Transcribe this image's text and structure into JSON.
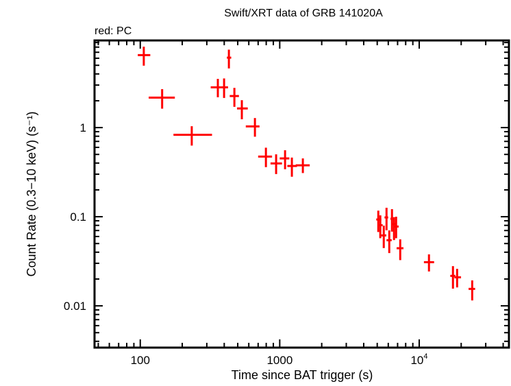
{
  "chart_data": {
    "type": "scatter",
    "title": "Swift/XRT data of GRB 141020A",
    "subtitle": "red: PC",
    "xlabel": "Time since BAT trigger (s)",
    "ylabel": "Count Rate (0.3−10 keV) (s⁻¹)",
    "xscale": "log",
    "yscale": "log",
    "xlim": [
      47,
      44000
    ],
    "ylim": [
      0.0034,
      9.5
    ],
    "grid": false,
    "x_ticks": [
      {
        "value": 100,
        "label": "100"
      },
      {
        "value": 1000,
        "label": "1000"
      },
      {
        "value": 10000,
        "label": "10",
        "sup": "4"
      }
    ],
    "y_ticks": [
      {
        "value": 1,
        "label": "1"
      },
      {
        "value": 0.1,
        "label": "0.1"
      },
      {
        "value": 0.01,
        "label": "0.01"
      }
    ],
    "series": [
      {
        "color": "#ff0000",
        "points": [
          {
            "x": 106,
            "xlo": 96,
            "xhi": 118,
            "y": 6.5,
            "ylo": 4.95,
            "yhi": 8.09
          },
          {
            "x": 143.5,
            "xlo": 115,
            "xhi": 177,
            "y": 2.17,
            "ylo": 1.63,
            "yhi": 2.7
          },
          {
            "x": 234,
            "xlo": 173,
            "xhi": 327,
            "y": 0.83,
            "ylo": 0.628,
            "yhi": 1.036
          },
          {
            "x": 360,
            "xlo": 320,
            "xhi": 380,
            "y": 2.83,
            "ylo": 2.19,
            "yhi": 3.52
          },
          {
            "x": 399,
            "xlo": 380,
            "xhi": 426,
            "y": 2.83,
            "ylo": 2.15,
            "yhi": 3.56
          },
          {
            "x": 432,
            "xlo": 418,
            "xhi": 449,
            "y": 6.09,
            "ylo": 4.61,
            "yhi": 7.49
          },
          {
            "x": 473,
            "xlo": 438,
            "xhi": 510,
            "y": 2.26,
            "ylo": 1.71,
            "yhi": 2.79
          },
          {
            "x": 535,
            "xlo": 494,
            "xhi": 590,
            "y": 1.64,
            "ylo": 1.24,
            "yhi": 2.03
          },
          {
            "x": 664,
            "xlo": 571,
            "xhi": 716,
            "y": 1.03,
            "ylo": 0.79,
            "yhi": 1.28
          },
          {
            "x": 796,
            "xlo": 700,
            "xhi": 881,
            "y": 0.473,
            "ylo": 0.36,
            "yhi": 0.595
          },
          {
            "x": 942,
            "xlo": 859,
            "xhi": 1038,
            "y": 0.396,
            "ylo": 0.301,
            "yhi": 0.501
          },
          {
            "x": 1092,
            "xlo": 1000,
            "xhi": 1172,
            "y": 0.451,
            "ylo": 0.341,
            "yhi": 0.557
          },
          {
            "x": 1222,
            "xlo": 1133,
            "xhi": 1330,
            "y": 0.371,
            "ylo": 0.281,
            "yhi": 0.461
          },
          {
            "x": 1465,
            "xlo": 1303,
            "xhi": 1641,
            "y": 0.377,
            "ylo": 0.309,
            "yhi": 0.451
          },
          {
            "x": 5090,
            "xlo": 4920,
            "xhi": 5350,
            "y": 0.0931,
            "ylo": 0.0674,
            "yhi": 0.117
          },
          {
            "x": 5260,
            "xlo": 5150,
            "xhi": 5470,
            "y": 0.0804,
            "ylo": 0.0574,
            "yhi": 0.1036
          },
          {
            "x": 5570,
            "xlo": 5310,
            "xhi": 5810,
            "y": 0.0617,
            "ylo": 0.0445,
            "yhi": 0.0794
          },
          {
            "x": 5830,
            "xlo": 5640,
            "xhi": 5990,
            "y": 0.0982,
            "ylo": 0.0705,
            "yhi": 0.126
          },
          {
            "x": 6100,
            "xlo": 5830,
            "xhi": 6350,
            "y": 0.0545,
            "ylo": 0.0391,
            "yhi": 0.0702
          },
          {
            "x": 6380,
            "xlo": 6220,
            "xhi": 6560,
            "y": 0.0948,
            "ylo": 0.068,
            "yhi": 0.1216
          },
          {
            "x": 6600,
            "xlo": 6410,
            "xhi": 6750,
            "y": 0.0828,
            "ylo": 0.0547,
            "yhi": 0.0989
          },
          {
            "x": 6830,
            "xlo": 6650,
            "xhi": 7130,
            "y": 0.0776,
            "ylo": 0.0574,
            "yhi": 0.1
          },
          {
            "x": 7310,
            "xlo": 6890,
            "xhi": 7710,
            "y": 0.0443,
            "ylo": 0.0326,
            "yhi": 0.0557
          },
          {
            "x": 11750,
            "xlo": 10810,
            "xhi": 12790,
            "y": 0.0309,
            "ylo": 0.0243,
            "yhi": 0.0378
          },
          {
            "x": 17460,
            "xlo": 16700,
            "xhi": 18160,
            "y": 0.0217,
            "ylo": 0.0156,
            "yhi": 0.0279
          },
          {
            "x": 18700,
            "xlo": 17870,
            "xhi": 19950,
            "y": 0.0209,
            "ylo": 0.0161,
            "yhi": 0.026
          },
          {
            "x": 23990,
            "xlo": 22600,
            "xhi": 25180,
            "y": 0.0155,
            "ylo": 0.0115,
            "yhi": 0.0193
          }
        ]
      }
    ]
  }
}
